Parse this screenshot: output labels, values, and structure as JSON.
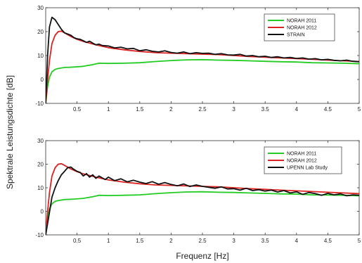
{
  "figure": {
    "ylabel": "Spektrale Leistungsdichte [dB]",
    "xlabel": "Frequenz [Hz]"
  },
  "chart_data": [
    {
      "type": "line",
      "xlim": [
        0,
        5
      ],
      "ylim": [
        -10,
        30
      ],
      "xticks": [
        0.5,
        1,
        1.5,
        2,
        2.5,
        3,
        3.5,
        4,
        4.5,
        5
      ],
      "xtick_labels": [
        "0.5",
        "1",
        "1.5",
        "2",
        "2.5",
        "3",
        "3.5",
        "4",
        "4.5",
        "5"
      ],
      "yticks": [
        -10,
        0,
        10,
        20,
        30
      ],
      "ytick_labels": [
        "-10",
        "0",
        "10",
        "20",
        "30"
      ],
      "grid": false,
      "legend_position": "top-right",
      "series": [
        {
          "name": "NORAH 2011",
          "color": "#22cc22",
          "x": [
            0.0,
            0.03,
            0.06,
            0.1,
            0.15,
            0.2,
            0.3,
            0.45,
            0.6,
            0.75,
            0.85,
            1.0,
            1.25,
            1.5,
            1.75,
            2.0,
            2.25,
            2.5,
            2.75,
            3.0,
            3.25,
            3.5,
            3.75,
            4.0,
            4.25,
            4.5,
            4.75,
            5.0
          ],
          "y": [
            -10,
            -3,
            1,
            3.2,
            4.2,
            4.6,
            5.0,
            5.2,
            5.5,
            6.2,
            6.8,
            6.7,
            6.8,
            7.0,
            7.5,
            7.9,
            8.2,
            8.3,
            8.1,
            8.0,
            7.8,
            7.6,
            7.4,
            7.3,
            7.0,
            6.9,
            6.8,
            6.6
          ]
        },
        {
          "name": "NORAH 2012",
          "color": "#dd2222",
          "x": [
            0.0,
            0.03,
            0.06,
            0.1,
            0.15,
            0.2,
            0.25,
            0.3,
            0.4,
            0.5,
            0.6,
            0.8,
            1.0,
            1.25,
            1.5,
            1.75,
            2.0,
            2.25,
            2.5,
            2.75,
            3.0,
            3.25,
            3.5,
            3.75,
            4.0,
            4.25,
            4.5,
            4.75,
            5.0
          ],
          "y": [
            -10,
            0,
            8,
            15,
            18.5,
            20.0,
            20.2,
            19.5,
            18.0,
            16.8,
            15.9,
            14.5,
            13.3,
            12.4,
            11.7,
            11.2,
            11.0,
            10.8,
            10.6,
            10.4,
            10.0,
            9.6,
            9.3,
            9.0,
            8.7,
            8.4,
            8.1,
            7.8,
            7.5
          ]
        },
        {
          "name": "STRAIN",
          "color": "#111111",
          "x": [
            0.0,
            0.03,
            0.06,
            0.1,
            0.15,
            0.2,
            0.25,
            0.3,
            0.35,
            0.4,
            0.45,
            0.5,
            0.55,
            0.6,
            0.65,
            0.7,
            0.75,
            0.8,
            0.85,
            0.9,
            1.0,
            1.1,
            1.2,
            1.3,
            1.4,
            1.5,
            1.6,
            1.7,
            1.8,
            1.9,
            2.0,
            2.1,
            2.2,
            2.3,
            2.4,
            2.5,
            2.6,
            2.7,
            2.8,
            2.9,
            3.0,
            3.1,
            3.2,
            3.3,
            3.4,
            3.5,
            3.6,
            3.7,
            3.8,
            3.9,
            4.0,
            4.1,
            4.2,
            4.3,
            4.4,
            4.5,
            4.6,
            4.7,
            4.8,
            4.9,
            5.0
          ],
          "y": [
            -10,
            10,
            22,
            26,
            25,
            23,
            21,
            19.5,
            19,
            18.5,
            17.5,
            17,
            16.8,
            16.2,
            15.5,
            16,
            15.2,
            14.5,
            14.8,
            14.2,
            14.0,
            13.2,
            13.5,
            12.8,
            13.0,
            12.0,
            12.4,
            11.8,
            11.5,
            12.0,
            11.3,
            11.0,
            11.5,
            10.8,
            11.2,
            10.9,
            11.0,
            10.5,
            10.8,
            10.3,
            10.2,
            10.5,
            9.8,
            10.0,
            9.5,
            9.7,
            9.2,
            9.5,
            9.0,
            9.2,
            8.8,
            9.0,
            8.5,
            8.7,
            8.2,
            8.4,
            8.0,
            7.8,
            8.1,
            7.6,
            7.4
          ]
        }
      ]
    },
    {
      "type": "line",
      "xlim": [
        0,
        5
      ],
      "ylim": [
        -10,
        30
      ],
      "xticks": [
        0.5,
        1,
        1.5,
        2,
        2.5,
        3,
        3.5,
        4,
        4.5,
        5
      ],
      "xtick_labels": [
        "0.5",
        "1",
        "1.5",
        "2",
        "2.5",
        "3",
        "3.5",
        "4",
        "4.5",
        "5"
      ],
      "yticks": [
        -10,
        0,
        10,
        20,
        30
      ],
      "ytick_labels": [
        "-10",
        "0",
        "10",
        "20",
        "30"
      ],
      "grid": false,
      "legend_position": "top-right",
      "series": [
        {
          "name": "NORAH 2011",
          "color": "#22cc22",
          "x": [
            0.0,
            0.03,
            0.06,
            0.1,
            0.15,
            0.2,
            0.3,
            0.45,
            0.6,
            0.75,
            0.85,
            1.0,
            1.25,
            1.5,
            1.75,
            2.0,
            2.25,
            2.5,
            2.75,
            3.0,
            3.25,
            3.5,
            3.75,
            4.0,
            4.25,
            4.5,
            4.75,
            5.0
          ],
          "y": [
            -10,
            -3,
            1,
            3.2,
            4.2,
            4.6,
            5.0,
            5.2,
            5.5,
            6.2,
            6.8,
            6.7,
            6.8,
            7.0,
            7.5,
            7.9,
            8.2,
            8.3,
            8.1,
            8.0,
            7.8,
            7.6,
            7.4,
            7.3,
            7.0,
            6.9,
            6.8,
            6.6
          ]
        },
        {
          "name": "NORAH 2012",
          "color": "#dd2222",
          "x": [
            0.0,
            0.03,
            0.06,
            0.1,
            0.15,
            0.2,
            0.25,
            0.3,
            0.4,
            0.5,
            0.6,
            0.8,
            1.0,
            1.25,
            1.5,
            1.75,
            2.0,
            2.25,
            2.5,
            2.75,
            3.0,
            3.25,
            3.5,
            3.75,
            4.0,
            4.25,
            4.5,
            4.75,
            5.0
          ],
          "y": [
            -10,
            0,
            8,
            15,
            18.5,
            20.0,
            20.2,
            19.5,
            18.0,
            16.8,
            15.9,
            14.5,
            13.3,
            12.4,
            11.7,
            11.2,
            11.0,
            10.8,
            10.6,
            10.4,
            10.0,
            9.6,
            9.3,
            9.0,
            8.7,
            8.4,
            8.1,
            7.8,
            7.5
          ]
        },
        {
          "name": "UPENN Lab Study",
          "color": "#111111",
          "x": [
            0.0,
            0.05,
            0.1,
            0.15,
            0.2,
            0.25,
            0.3,
            0.35,
            0.4,
            0.45,
            0.5,
            0.55,
            0.6,
            0.65,
            0.7,
            0.75,
            0.8,
            0.85,
            0.9,
            0.95,
            1.0,
            1.1,
            1.2,
            1.3,
            1.4,
            1.5,
            1.6,
            1.7,
            1.8,
            1.9,
            2.0,
            2.1,
            2.2,
            2.3,
            2.4,
            2.5,
            2.6,
            2.7,
            2.8,
            2.9,
            3.0,
            3.1,
            3.2,
            3.3,
            3.4,
            3.5,
            3.6,
            3.7,
            3.8,
            3.9,
            4.0,
            4.1,
            4.2,
            4.3,
            4.4,
            4.5,
            4.6,
            4.7,
            4.8,
            4.9,
            5.0
          ],
          "y": [
            -10,
            -2,
            6,
            10,
            13,
            15.5,
            17,
            18.5,
            18.8,
            17.8,
            17,
            16.5,
            15,
            16,
            14.5,
            15.5,
            14,
            15,
            14.2,
            13.5,
            14.5,
            13,
            13.8,
            12.5,
            13.2,
            12.4,
            11.8,
            12.6,
            11.5,
            12.2,
            11.4,
            10.8,
            11.6,
            10.5,
            11.2,
            10.6,
            10.2,
            9.8,
            10.4,
            9.5,
            9.6,
            9.0,
            9.8,
            8.8,
            9.2,
            8.6,
            9.0,
            8.2,
            8.8,
            7.8,
            8.3,
            7.2,
            8.0,
            7.5,
            6.8,
            7.6,
            7.0,
            7.4,
            6.6,
            7.0,
            6.8
          ]
        }
      ]
    }
  ]
}
